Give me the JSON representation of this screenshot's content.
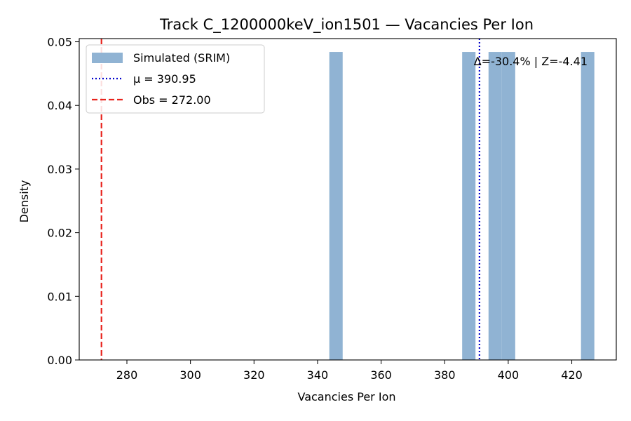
{
  "chart_data": {
    "type": "bar",
    "title": "Track C_1200000keV_ion1501 — Vacancies Per Ion",
    "xlabel": "Vacancies Per Ion",
    "ylabel": "Density",
    "xlim": [
      265,
      434
    ],
    "ylim": [
      0,
      0.0505
    ],
    "xticks": [
      280,
      300,
      320,
      340,
      360,
      380,
      400,
      420
    ],
    "yticks": [
      0.0,
      0.01,
      0.02,
      0.03,
      0.04,
      0.05
    ],
    "ytick_labels": [
      "0.00",
      "0.01",
      "0.02",
      "0.03",
      "0.04",
      "0.05"
    ],
    "grid": false,
    "legend_position": "upper-left",
    "histogram": {
      "name": "Simulated (SRIM)",
      "color": "#90b3d3",
      "bins": [
        {
          "x0": 343.7,
          "x1": 347.9,
          "density": 0.0484
        },
        {
          "x0": 385.5,
          "x1": 389.7,
          "density": 0.0484
        },
        {
          "x0": 393.8,
          "x1": 398.0,
          "density": 0.0484
        },
        {
          "x0": 398.0,
          "x1": 402.2,
          "density": 0.0484
        },
        {
          "x0": 422.9,
          "x1": 427.1,
          "density": 0.0484
        }
      ]
    },
    "lines": [
      {
        "name": "μ = 390.95",
        "x": 390.95,
        "color": "#0000cc",
        "style": "dotted"
      },
      {
        "name": "Obs = 272.00",
        "x": 272.0,
        "color": "#e8231c",
        "style": "dashed"
      }
    ],
    "annotation": "Δ=-30.4% | Z=-4.41"
  }
}
